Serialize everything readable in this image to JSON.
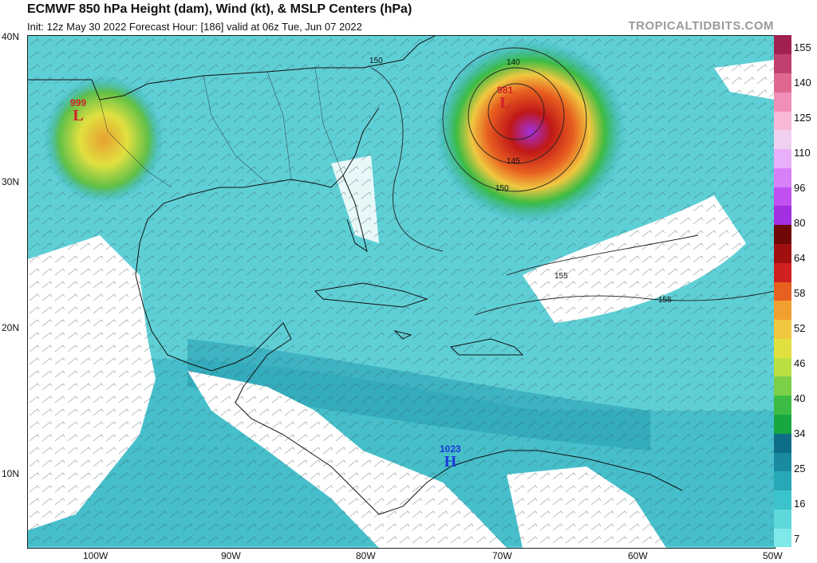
{
  "header": {
    "title": "ECMWF 850 hPa Height (dam), Wind (kt), & MSLP Centers (hPa)",
    "subtitle": "Init: 12z May 30 2022   Forecast Hour: [186]   valid at 06z Tue, Jun 07 2022",
    "brand": "TROPICALTIDBITS.COM"
  },
  "axes": {
    "lat_labels": [
      "40N",
      "30N",
      "20N",
      "10N"
    ],
    "lon_labels": [
      "100W",
      "90W",
      "80W",
      "70W",
      "60W",
      "50W"
    ]
  },
  "colorbar": {
    "labels": [
      "155",
      "140",
      "125",
      "110",
      "96",
      "80",
      "64",
      "58",
      "52",
      "46",
      "40",
      "34",
      "25",
      "16",
      "7"
    ],
    "segments": [
      "#7fe8e8",
      "#5fd8dc",
      "#3cc4cc",
      "#28a8b6",
      "#1a8aa0",
      "#0e6e88",
      "#18a840",
      "#3cbc44",
      "#7cd048",
      "#b8e040",
      "#e0e040",
      "#f0c840",
      "#f0a030",
      "#e86020",
      "#d02020",
      "#a01010",
      "#700808",
      "#a030e0",
      "#c050f0",
      "#d880f8",
      "#e8b0f8",
      "#f0d0f0",
      "#f8b8d8",
      "#f090b8",
      "#e06890",
      "#c04070",
      "#a02050"
    ]
  },
  "centers": [
    {
      "pressure": "999",
      "letter": "L",
      "color": "#d0202a"
    },
    {
      "pressure": "981",
      "letter": "L",
      "color": "#d0202a"
    },
    {
      "pressure": "1023",
      "letter": "H",
      "color": "#1a3ad8"
    }
  ],
  "contours": [
    "150",
    "140",
    "145",
    "150",
    "155",
    "155"
  ]
}
